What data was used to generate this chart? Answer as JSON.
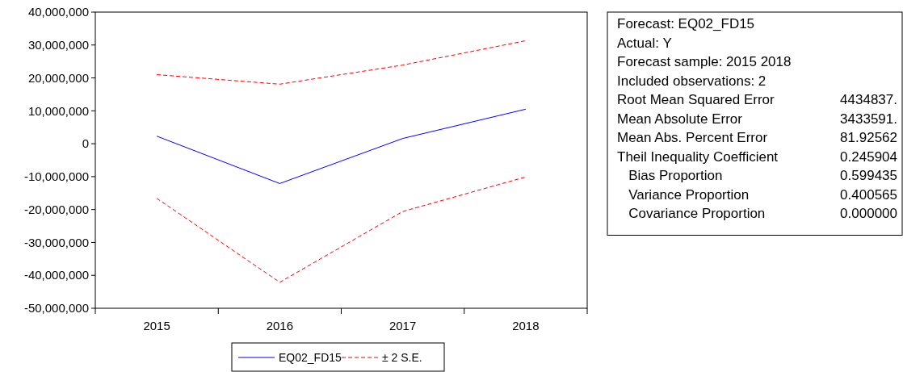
{
  "chart_data": [
    {
      "type": "line",
      "categories": [
        "2015",
        "2016",
        "2017",
        "2018"
      ],
      "series": [
        {
          "name": "EQ02_FD15",
          "color": "#0000ff",
          "line_style": "solid",
          "values": [
            2300000,
            -12100000,
            1600000,
            10500000
          ]
        },
        {
          "name": "± 2 S.E.",
          "color": "#ff0000",
          "line_style": "dashed",
          "values": [
            21000000,
            18100000,
            23900000,
            31300000
          ]
        },
        {
          "color": "#ff0000",
          "line_style": "dashed",
          "values": [
            -16600000,
            -42100000,
            -20600000,
            -10100000
          ]
        }
      ],
      "ylim": [
        -50000000,
        40000000
      ],
      "yticks": [
        {
          "value": -50000000,
          "label": "-50,000,000"
        },
        {
          "value": -40000000,
          "label": "-40,000,000"
        },
        {
          "value": -30000000,
          "label": "-30,000,000"
        },
        {
          "value": -20000000,
          "label": "-20,000,000"
        },
        {
          "value": -10000000,
          "label": "-10,000,000"
        },
        0,
        {
          "value": 10000000,
          "label": "10,000,000"
        },
        {
          "value": 20000000,
          "label": "20,000,000"
        },
        {
          "value": 30000000,
          "label": "30,000,000"
        },
        {
          "value": 40000000,
          "label": "40,000,000"
        }
      ],
      "grid": false,
      "legend": "bottom"
    },
    {
      "type": "other",
      "annotations": [
        "Forecast: EQ02_FD15",
        "Actual: Y",
        "Forecast sample: 2015 2018",
        "Included observations: 2",
        "Root Mean Squared Error\t4434837.",
        "Mean Absolute Error\t3433591.",
        "Mean Abs. Percent Error\t81.92562",
        "Theil Inequality Coefficient\t0.245904",
        "   Bias Proportion\t0.599435",
        "   Variance Proportion\t0.400565",
        "   Covariance Proportion\t0.000000"
      ]
    }
  ]
}
